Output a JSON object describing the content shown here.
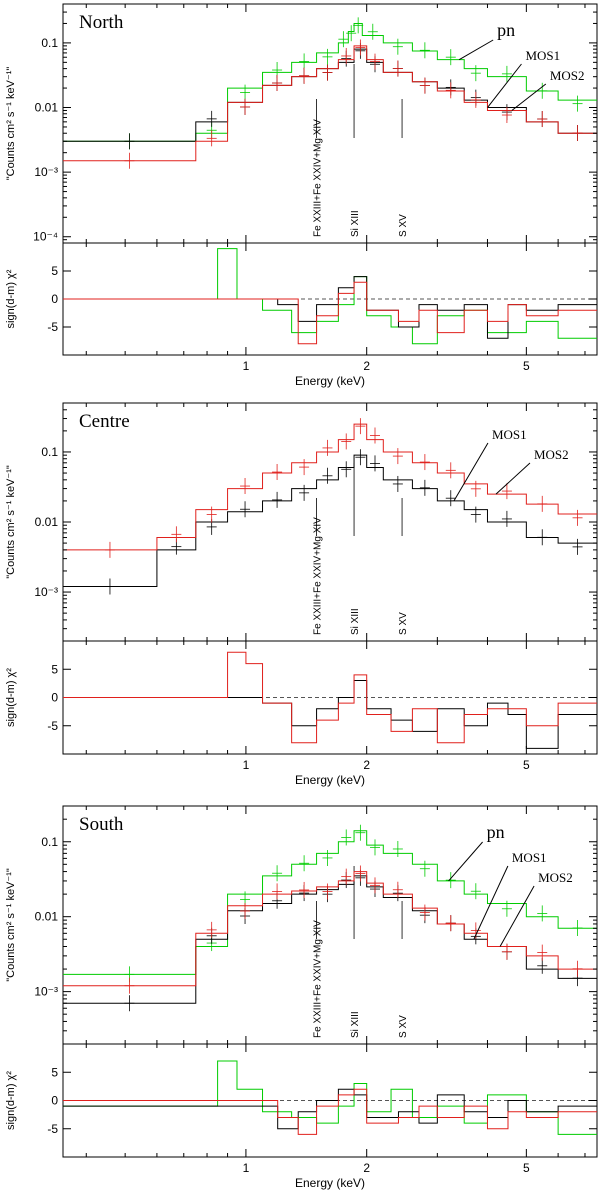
{
  "figure": {
    "xlabel": "Energy (keV)",
    "ylabel_top": "\"Counts cm² s⁻¹ keV⁻¹\"",
    "ylabel_bottom": "sign(d-m) χ²",
    "colors": {
      "pn": "#00cc00",
      "MOS1": "#000000",
      "MOS2": "#e0201c",
      "zero": "#555555"
    }
  },
  "chart_data": [
    {
      "type": "line",
      "title": "North",
      "x_scale": "log",
      "xlim": [
        0.35,
        7.5
      ],
      "ylim": [
        8e-05,
        0.4
      ],
      "y_scale": "log",
      "x_ticks": [
        1,
        2,
        5
      ],
      "x_tick_labels": [
        "1",
        "2",
        "5"
      ],
      "y_ticks": [
        0.0001,
        0.001,
        0.01,
        0.1
      ],
      "y_tick_labels": [
        "10⁻⁴",
        "10⁻³",
        "0.01",
        "0.1"
      ],
      "line_labels": [
        {
          "text": "Fe XXIII+Fe XXIV+Mg XIV",
          "energy": 1.5
        },
        {
          "text": "Si XIII",
          "energy": 1.86
        },
        {
          "text": "S XV",
          "energy": 2.45
        }
      ],
      "annotations": [
        {
          "text": "pn",
          "series": "pn",
          "energy": 3.4
        },
        {
          "text": "MOS1",
          "series": "MOS1",
          "energy": 4.0
        },
        {
          "text": "MOS2",
          "series": "MOS2",
          "energy": 4.6
        }
      ],
      "series": [
        {
          "name": "pn",
          "color": "#00cc00",
          "x": [
            0.35,
            0.75,
            0.9,
            1.1,
            1.3,
            1.5,
            1.7,
            1.8,
            1.86,
            1.95,
            2.2,
            2.6,
            3.0,
            3.5,
            4.0,
            5.0,
            6.0,
            7.5
          ],
          "y": [
            0.003,
            0.004,
            0.02,
            0.035,
            0.05,
            0.07,
            0.1,
            0.15,
            0.2,
            0.13,
            0.1,
            0.075,
            0.055,
            0.04,
            0.03,
            0.018,
            0.013,
            0.009
          ]
        },
        {
          "name": "MOS1",
          "color": "#000000",
          "x": [
            0.35,
            0.75,
            0.9,
            1.1,
            1.3,
            1.5,
            1.7,
            1.86,
            2.0,
            2.2,
            2.6,
            3.0,
            3.5,
            4.0,
            5.0,
            6.0,
            7.5
          ],
          "y": [
            0.003,
            0.006,
            0.012,
            0.022,
            0.03,
            0.04,
            0.05,
            0.08,
            0.05,
            0.035,
            0.025,
            0.02,
            0.013,
            0.01,
            0.006,
            0.004,
            0.002
          ]
        },
        {
          "name": "MOS2",
          "color": "#e0201c",
          "x": [
            0.35,
            0.75,
            0.9,
            1.1,
            1.3,
            1.5,
            1.7,
            1.86,
            2.0,
            2.2,
            2.6,
            3.0,
            3.5,
            4.0,
            5.0,
            6.0,
            7.5
          ],
          "y": [
            0.0015,
            0.003,
            0.012,
            0.022,
            0.03,
            0.04,
            0.055,
            0.09,
            0.055,
            0.035,
            0.025,
            0.018,
            0.012,
            0.009,
            0.006,
            0.004,
            0.002
          ]
        }
      ],
      "residual": {
        "ylim": [
          -10,
          10
        ],
        "y_ticks": [
          -5,
          0,
          5
        ],
        "y_tick_labels": [
          "-5",
          "0",
          "5"
        ],
        "series": [
          {
            "name": "pn",
            "color": "#00cc00",
            "x": [
              0.35,
              0.8,
              0.85,
              0.95,
              1.1,
              1.3,
              1.5,
              1.7,
              1.86,
              2.0,
              2.3,
              2.6,
              3.0,
              3.5,
              4.0,
              5.0,
              6.0,
              7.5
            ],
            "y": [
              0,
              0,
              9,
              0,
              -2,
              -6,
              -4,
              -1,
              4,
              -3,
              -5,
              -8,
              -3,
              -2,
              -6,
              -4,
              -7,
              -2
            ]
          },
          {
            "name": "MOS1",
            "color": "#000000",
            "x": [
              0.35,
              1.0,
              1.2,
              1.35,
              1.5,
              1.7,
              1.86,
              2.0,
              2.4,
              2.7,
              3.0,
              3.5,
              4.0,
              4.5,
              5.0,
              6.0,
              7.5
            ],
            "y": [
              0,
              0,
              -1,
              -4,
              -1,
              2,
              4,
              -2,
              -5,
              -1,
              -2,
              -1,
              -7,
              -1,
              -2,
              -1,
              2
            ]
          },
          {
            "name": "MOS2",
            "color": "#e0201c",
            "x": [
              0.35,
              1.0,
              1.2,
              1.35,
              1.5,
              1.7,
              1.86,
              2.0,
              2.4,
              2.7,
              3.0,
              3.5,
              4.0,
              4.5,
              5.0,
              6.0,
              7.5
            ],
            "y": [
              0,
              0,
              0,
              -8,
              -3,
              1,
              3,
              -2,
              -4,
              -2,
              -6,
              -2,
              -4,
              -1,
              -3,
              -2,
              1
            ]
          }
        ]
      }
    },
    {
      "type": "line",
      "title": "Centre",
      "x_scale": "log",
      "xlim": [
        0.35,
        7.5
      ],
      "ylim": [
        0.0002,
        0.5
      ],
      "y_scale": "log",
      "x_ticks": [
        1,
        2,
        5
      ],
      "x_tick_labels": [
        "1",
        "2",
        "5"
      ],
      "y_ticks": [
        0.001,
        0.01,
        0.1
      ],
      "y_tick_labels": [
        "10⁻³",
        "0.01",
        "0.1"
      ],
      "line_labels": [
        {
          "text": "Fe XXIII+Fe XXIV+Mg XIV",
          "energy": 1.5
        },
        {
          "text": "Si XIII",
          "energy": 1.86
        },
        {
          "text": "S XV",
          "energy": 2.45
        }
      ],
      "annotations": [
        {
          "text": "MOS1",
          "series": "MOS1",
          "energy": 3.3
        },
        {
          "text": "MOS2",
          "series": "MOS2",
          "energy": 4.2
        }
      ],
      "series": [
        {
          "name": "MOS1",
          "color": "#000000",
          "x": [
            0.35,
            0.6,
            0.75,
            0.9,
            1.1,
            1.3,
            1.5,
            1.7,
            1.86,
            2.0,
            2.2,
            2.6,
            3.0,
            3.5,
            4.0,
            5.0,
            6.0,
            7.5
          ],
          "y": [
            0.0012,
            0.004,
            0.01,
            0.014,
            0.02,
            0.03,
            0.04,
            0.06,
            0.09,
            0.06,
            0.04,
            0.03,
            0.02,
            0.015,
            0.01,
            0.006,
            0.005,
            0.004
          ]
        },
        {
          "name": "MOS2",
          "color": "#e0201c",
          "x": [
            0.35,
            0.6,
            0.75,
            0.9,
            1.1,
            1.3,
            1.5,
            1.7,
            1.86,
            2.0,
            2.2,
            2.6,
            3.0,
            3.5,
            4.0,
            5.0,
            6.0,
            7.5
          ],
          "y": [
            0.004,
            0.006,
            0.015,
            0.03,
            0.05,
            0.07,
            0.1,
            0.15,
            0.25,
            0.15,
            0.1,
            0.07,
            0.05,
            0.035,
            0.025,
            0.018,
            0.013,
            0.01
          ]
        }
      ],
      "residual": {
        "ylim": [
          -10,
          10
        ],
        "y_ticks": [
          -5,
          0,
          5
        ],
        "y_tick_labels": [
          "-5",
          "0",
          "5"
        ],
        "series": [
          {
            "name": "MOS1",
            "color": "#000000",
            "x": [
              0.35,
              0.9,
              1.1,
              1.3,
              1.5,
              1.7,
              1.86,
              2.0,
              2.3,
              2.6,
              3.0,
              3.5,
              4.0,
              4.5,
              5.0,
              6.0,
              7.5
            ],
            "y": [
              0,
              0,
              -1,
              -5,
              -2,
              0,
              3,
              -2,
              -4,
              -6,
              -2,
              -5,
              -1,
              -3,
              -9,
              -3,
              -2
            ]
          },
          {
            "name": "MOS2",
            "color": "#e0201c",
            "x": [
              0.35,
              0.85,
              0.9,
              1.0,
              1.1,
              1.3,
              1.5,
              1.7,
              1.86,
              2.0,
              2.3,
              2.6,
              3.0,
              3.5,
              4.0,
              5.0,
              6.0,
              7.5
            ],
            "y": [
              0,
              0,
              8,
              6,
              -1,
              -8,
              -4,
              -1,
              4,
              -3,
              -6,
              -2,
              -8,
              -3,
              -2,
              -5,
              -1,
              1
            ]
          }
        ]
      }
    },
    {
      "type": "line",
      "title": "South",
      "x_scale": "log",
      "xlim": [
        0.35,
        7.5
      ],
      "ylim": [
        0.0002,
        0.3
      ],
      "y_scale": "log",
      "x_ticks": [
        1,
        2,
        5
      ],
      "x_tick_labels": [
        "1",
        "2",
        "5"
      ],
      "y_ticks": [
        0.001,
        0.01,
        0.1
      ],
      "y_tick_labels": [
        "10⁻³",
        "0.01",
        "0.1"
      ],
      "line_labels": [
        {
          "text": "Fe XXIII+Fe XXIV+Mg XIV",
          "energy": 1.5
        },
        {
          "text": "Si XIII",
          "energy": 1.86
        },
        {
          "text": "S XV",
          "energy": 2.45
        }
      ],
      "annotations": [
        {
          "text": "pn",
          "series": "pn",
          "energy": 3.2
        },
        {
          "text": "MOS1",
          "series": "MOS1",
          "energy": 3.7
        },
        {
          "text": "MOS2",
          "series": "MOS2",
          "energy": 4.3
        }
      ],
      "series": [
        {
          "name": "pn",
          "color": "#00cc00",
          "x": [
            0.35,
            0.75,
            0.9,
            1.1,
            1.3,
            1.5,
            1.7,
            1.86,
            2.0,
            2.2,
            2.6,
            3.0,
            3.5,
            4.0,
            5.0,
            6.0,
            7.5
          ],
          "y": [
            0.0017,
            0.004,
            0.02,
            0.035,
            0.05,
            0.07,
            0.1,
            0.14,
            0.09,
            0.07,
            0.05,
            0.03,
            0.02,
            0.015,
            0.01,
            0.007,
            0.004
          ]
        },
        {
          "name": "MOS1",
          "color": "#000000",
          "x": [
            0.35,
            0.75,
            0.9,
            1.1,
            1.3,
            1.5,
            1.7,
            1.86,
            2.0,
            2.2,
            2.6,
            3.0,
            3.5,
            4.0,
            5.0,
            6.0,
            7.5
          ],
          "y": [
            0.0007,
            0.005,
            0.012,
            0.015,
            0.02,
            0.023,
            0.027,
            0.035,
            0.025,
            0.018,
            0.012,
            0.008,
            0.005,
            0.004,
            0.002,
            0.0015,
            0.001
          ]
        },
        {
          "name": "MOS2",
          "color": "#e0201c",
          "x": [
            0.35,
            0.75,
            0.9,
            1.1,
            1.3,
            1.5,
            1.7,
            1.86,
            2.0,
            2.2,
            2.6,
            3.0,
            3.5,
            4.0,
            5.0,
            6.0,
            7.5
          ],
          "y": [
            0.0012,
            0.006,
            0.014,
            0.02,
            0.022,
            0.025,
            0.03,
            0.04,
            0.028,
            0.02,
            0.013,
            0.008,
            0.006,
            0.004,
            0.003,
            0.002,
            0.0015
          ]
        }
      ],
      "residual": {
        "ylim": [
          -10,
          10
        ],
        "y_ticks": [
          -5,
          0,
          5
        ],
        "y_tick_labels": [
          "-5",
          "0",
          "5"
        ],
        "series": [
          {
            "name": "pn",
            "color": "#00cc00",
            "x": [
              0.35,
              0.8,
              0.85,
              0.95,
              1.1,
              1.3,
              1.5,
              1.7,
              1.86,
              2.0,
              2.3,
              2.6,
              3.0,
              3.5,
              4.0,
              5.0,
              6.0,
              7.5
            ],
            "y": [
              -1,
              -1,
              7,
              2,
              -2,
              -3,
              -4,
              -1,
              3,
              -2,
              2,
              -3,
              -1,
              -4,
              1,
              -2,
              -6,
              1
            ]
          },
          {
            "name": "MOS1",
            "color": "#000000",
            "x": [
              0.35,
              1.0,
              1.2,
              1.35,
              1.5,
              1.7,
              1.86,
              2.0,
              2.4,
              2.7,
              3.0,
              3.5,
              4.0,
              4.5,
              5.0,
              6.0,
              7.5
            ],
            "y": [
              -1,
              -1,
              -5,
              -2,
              0,
              2,
              1,
              -3,
              -2,
              -4,
              1,
              -2,
              -3,
              0,
              -2,
              -1,
              1
            ]
          },
          {
            "name": "MOS2",
            "color": "#e0201c",
            "x": [
              0.35,
              1.0,
              1.2,
              1.35,
              1.5,
              1.7,
              1.86,
              2.0,
              2.4,
              2.7,
              3.0,
              3.5,
              4.0,
              4.5,
              5.0,
              6.0,
              7.5
            ],
            "y": [
              0,
              0,
              -3,
              -6,
              -1,
              1,
              2,
              -4,
              -3,
              -1,
              -3,
              -1,
              -5,
              -2,
              -3,
              -2,
              0
            ]
          }
        ]
      }
    }
  ]
}
